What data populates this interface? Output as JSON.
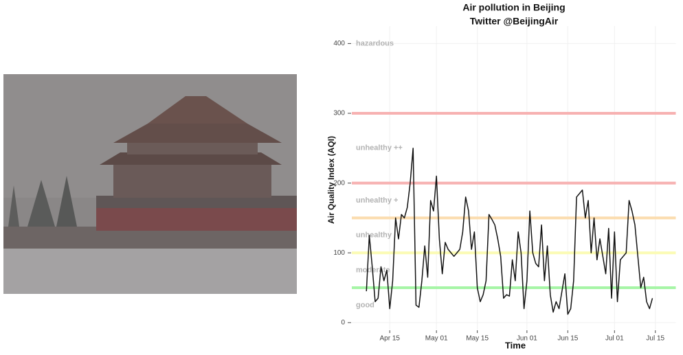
{
  "chart_data": {
    "type": "line",
    "title": "Air pollution in Beijing",
    "subtitle": "Twitter @BeijingAir",
    "x_label": "Time",
    "y_label": "Air Quality Index (AQI)",
    "x": [
      "Apr 07",
      "Apr 08",
      "Apr 09",
      "Apr 10",
      "Apr 11",
      "Apr 12",
      "Apr 13",
      "Apr 14",
      "Apr 15",
      "Apr 16",
      "Apr 17",
      "Apr 18",
      "Apr 19",
      "Apr 20",
      "Apr 21",
      "Apr 22",
      "Apr 23",
      "Apr 24",
      "Apr 25",
      "Apr 26",
      "Apr 27",
      "Apr 28",
      "Apr 29",
      "Apr 30",
      "May 01",
      "May 02",
      "May 03",
      "May 04",
      "May 05",
      "May 06",
      "May 07",
      "May 08",
      "May 09",
      "May 10",
      "May 11",
      "May 12",
      "May 13",
      "May 14",
      "May 15",
      "May 16",
      "May 17",
      "May 18",
      "May 19",
      "May 20",
      "May 21",
      "May 22",
      "May 23",
      "May 24",
      "May 25",
      "May 26",
      "May 27",
      "May 28",
      "May 29",
      "May 30",
      "May 31",
      "Jun 01",
      "Jun 02",
      "Jun 03",
      "Jun 04",
      "Jun 05",
      "Jun 06",
      "Jun 07",
      "Jun 08",
      "Jun 09",
      "Jun 10",
      "Jun 11",
      "Jun 12",
      "Jun 13",
      "Jun 14",
      "Jun 15",
      "Jun 16",
      "Jun 17",
      "Jun 18",
      "Jun 19",
      "Jun 20",
      "Jun 21",
      "Jun 22",
      "Jun 23",
      "Jun 24",
      "Jun 25",
      "Jun 26",
      "Jun 27",
      "Jun 28",
      "Jun 29",
      "Jun 30",
      "Jul 01",
      "Jul 02",
      "Jul 03",
      "Jul 04",
      "Jul 05",
      "Jul 06",
      "Jul 07",
      "Jul 08",
      "Jul 09",
      "Jul 10",
      "Jul 11",
      "Jul 12",
      "Jul 13",
      "Jul 14"
    ],
    "series": [
      {
        "color": "#111111",
        "values": [
          45,
          125,
          80,
          30,
          35,
          80,
          60,
          75,
          20,
          60,
          150,
          120,
          155,
          150,
          165,
          200,
          250,
          25,
          22,
          60,
          110,
          65,
          175,
          160,
          210,
          120,
          70,
          115,
          105,
          100,
          95,
          100,
          105,
          130,
          180,
          160,
          105,
          130,
          50,
          30,
          40,
          60,
          155,
          148,
          140,
          120,
          95,
          35,
          40,
          38,
          90,
          60,
          130,
          100,
          20,
          60,
          160,
          100,
          85,
          80,
          140,
          60,
          110,
          40,
          15,
          30,
          20,
          45,
          70,
          12,
          20,
          60,
          180,
          185,
          190,
          150,
          175,
          100,
          150,
          90,
          120,
          95,
          70,
          135,
          35,
          130,
          30,
          90,
          95,
          100,
          175,
          160,
          140,
          95,
          50,
          65,
          30,
          20,
          35
        ]
      }
    ],
    "xlim": [
      "Apr 02",
      "Jul 22"
    ],
    "xticks": [
      "Apr 15",
      "May 01",
      "May 15",
      "Jun 01",
      "Jun 15",
      "Jul 01",
      "Jul 15"
    ],
    "ylim": [
      -10,
      425
    ],
    "yticks": [
      0,
      100,
      200,
      300,
      400
    ],
    "grid": true,
    "levels": [
      {
        "name": "good",
        "label_y": 25,
        "limit": 50,
        "color": "#a6f5a6"
      },
      {
        "name": "moderate",
        "label_y": 75,
        "limit": 100,
        "color": "#fbfbb4"
      },
      {
        "name": "unhealthy",
        "label_y": 125,
        "limit": 150,
        "color": "#fbdcae"
      },
      {
        "name": "unhealthy +",
        "label_y": 175,
        "limit": 200,
        "color": "#f7b1b1"
      },
      {
        "name": "unhealthy ++",
        "label_y": 250,
        "limit": 300,
        "color": "#f7b1b1"
      },
      {
        "name": "hazardous",
        "label_y": 400
      }
    ]
  }
}
